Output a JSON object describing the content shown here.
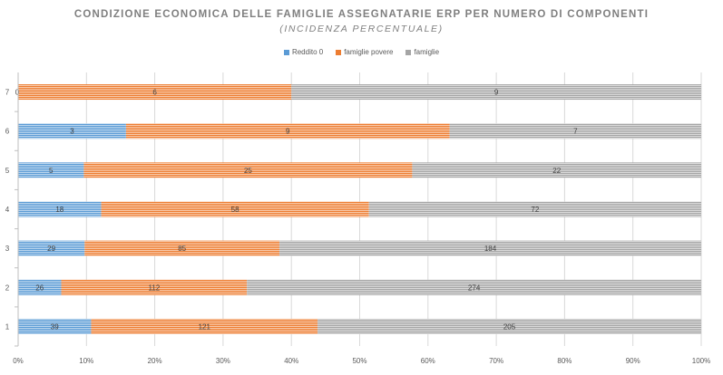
{
  "chart_data": {
    "type": "bar",
    "orientation": "horizontal",
    "stacked": "percent",
    "title": "CONDIZIONE ECONOMICA DELLE FAMIGLIE ASSEGNATARIE ERP PER NUMERO DI COMPONENTI",
    "subtitle": "(INCIDENZA PERCENTUALE)",
    "categories": [
      "1",
      "2",
      "3",
      "4",
      "5",
      "6",
      "7"
    ],
    "series": [
      {
        "name": "Reddito 0",
        "color": "#5b9bd5",
        "values": [
          39,
          26,
          29,
          18,
          5,
          3,
          0
        ],
        "labels": [
          "39",
          "26",
          "29",
          "18",
          "5",
          "3",
          "0"
        ]
      },
      {
        "name": "famiglie povere",
        "color": "#ed7d31",
        "values": [
          121,
          112,
          85,
          58,
          25,
          9,
          6
        ],
        "labels": [
          "121",
          "112",
          "85",
          "58",
          "25",
          "9",
          "6"
        ]
      },
      {
        "name": "famiglie",
        "color": "#a5a5a5",
        "values": [
          205,
          274,
          184,
          72,
          22,
          7,
          9
        ],
        "labels": [
          "205",
          "274",
          "184",
          "72",
          "22",
          "7",
          "9"
        ]
      }
    ],
    "xlim": [
      0,
      100
    ],
    "xticks": [
      "0%",
      "10%",
      "20%",
      "30%",
      "40%",
      "50%",
      "60%",
      "70%",
      "80%",
      "90%",
      "100%"
    ],
    "grid": true,
    "legend_position": "top"
  }
}
